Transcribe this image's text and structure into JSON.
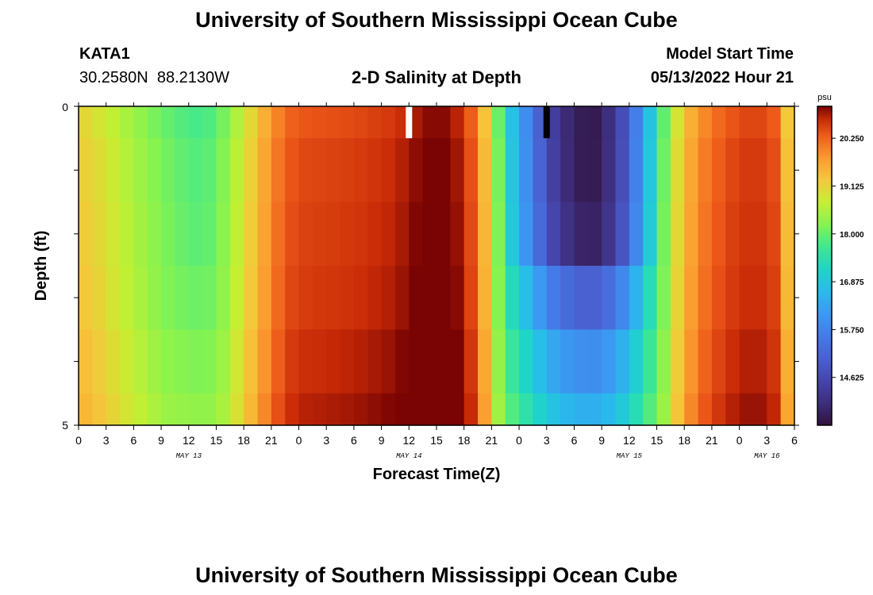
{
  "page": {
    "title": "University of Southern Mississippi Ocean Cube",
    "bottom_title": "University of Southern Mississippi Ocean Cube",
    "station_id": "KATA1",
    "station_coords": "30.2580N  88.2130W",
    "plot_title": "2-D Salinity at Depth",
    "model_start_label": "Model Start Time",
    "model_start_value": "05/13/2022 Hour 21"
  },
  "chart_data": {
    "type": "heatmap",
    "title": "2-D Salinity at Depth",
    "xlabel": "Forecast Time(Z)",
    "ylabel": "Depth (ft)",
    "ylim": [
      0,
      5
    ],
    "y_ticks": [
      "0",
      "5"
    ],
    "x_hours": [
      0,
      78
    ],
    "x_tick_labels": [
      "0",
      "3",
      "6",
      "9",
      "12",
      "15",
      "18",
      "21",
      "0",
      "3",
      "6",
      "9",
      "12",
      "15",
      "18",
      "21",
      "0",
      "3",
      "6",
      "9",
      "12",
      "15",
      "18",
      "21",
      "0",
      "3",
      "6"
    ],
    "month_labels": [
      {
        "label": "MAY 13",
        "hour": 12
      },
      {
        "label": "MAY 14",
        "hour": 36
      },
      {
        "label": "MAY 15",
        "hour": 60
      },
      {
        "label": "MAY 16",
        "hour": 75
      }
    ],
    "colorbar": {
      "unit": "psu",
      "min": 13.5,
      "max": 21.0,
      "ticks": [
        "20.250",
        "19.125",
        "18.000",
        "16.875",
        "15.750",
        "14.625"
      ]
    },
    "depth_layers": [
      0.0,
      0.5,
      1.5,
      2.5,
      3.5,
      4.5
    ],
    "time_profile": [
      [
        0,
        19.1
      ],
      [
        1.5,
        19.0
      ],
      [
        3,
        18.8
      ],
      [
        4.5,
        18.6
      ],
      [
        6,
        18.4
      ],
      [
        7.5,
        18.2
      ],
      [
        9,
        18.05
      ],
      [
        10.5,
        17.9
      ],
      [
        12,
        17.8
      ],
      [
        13.5,
        17.75
      ],
      [
        15,
        17.9
      ],
      [
        16.5,
        18.3
      ],
      [
        18,
        18.8
      ],
      [
        19.5,
        19.3
      ],
      [
        21,
        19.8
      ],
      [
        22.5,
        20.2
      ],
      [
        24,
        20.35
      ],
      [
        27,
        20.4
      ],
      [
        30,
        20.45
      ],
      [
        33,
        20.55
      ],
      [
        34.5,
        20.6
      ],
      [
        36,
        20.75
      ],
      [
        37.5,
        20.9
      ],
      [
        39,
        21.0
      ],
      [
        40.5,
        20.9
      ],
      [
        42,
        20.6
      ],
      [
        43.5,
        20.0
      ],
      [
        44.5,
        19.1
      ],
      [
        45.5,
        18.3
      ],
      [
        46.5,
        17.2
      ],
      [
        48,
        16.3
      ],
      [
        49.5,
        15.5
      ],
      [
        51,
        14.7
      ],
      [
        52.5,
        14.1
      ],
      [
        54,
        13.8
      ],
      [
        55.5,
        13.6
      ],
      [
        57,
        13.75
      ],
      [
        58.5,
        14.3
      ],
      [
        60,
        15.1
      ],
      [
        61.5,
        16.2
      ],
      [
        63,
        17.4
      ],
      [
        64.5,
        18.5
      ],
      [
        66,
        19.3
      ],
      [
        67.5,
        19.8
      ],
      [
        69,
        20.1
      ],
      [
        70.5,
        20.3
      ],
      [
        72,
        20.45
      ],
      [
        73.5,
        20.5
      ],
      [
        75,
        20.45
      ],
      [
        76.5,
        20.2
      ],
      [
        78,
        18.3
      ]
    ],
    "depth_offsets": [
      0,
      0.1,
      0.15,
      0.2,
      0.3,
      0.4
    ],
    "fresh_gain": [
      1.0,
      1.02,
      1.0,
      0.72,
      0.55,
      0.45
    ],
    "missing_markers": [
      {
        "hour": 36,
        "color": "#ffffff"
      },
      {
        "hour": 51,
        "color": "#000000"
      }
    ]
  }
}
